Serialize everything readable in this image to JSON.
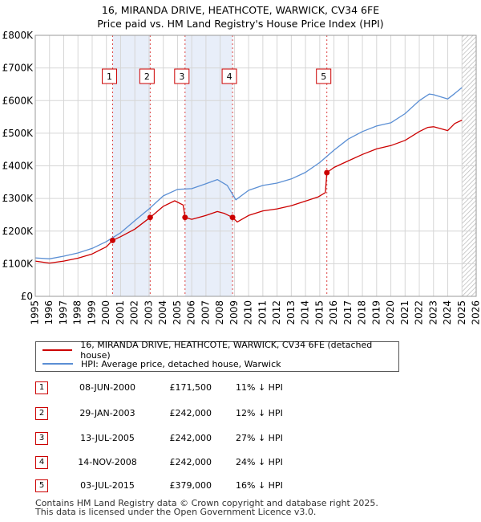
{
  "title_line1": "16, MIRANDA DRIVE, HEATHCOTE, WARWICK, CV34 6FE",
  "title_line2": "Price paid vs. HM Land Registry's House Price Index (HPI)",
  "chart_data": {
    "type": "line",
    "title": "16, MIRANDA DRIVE, HEATHCOTE, WARWICK, CV34 6FE — Price paid vs. HM Land Registry's House Price Index (HPI)",
    "xlim": [
      1995,
      2026
    ],
    "ylim": [
      0,
      800000
    ],
    "x_ticks": [
      "1995",
      "1996",
      "1997",
      "1998",
      "1999",
      "2000",
      "2001",
      "2002",
      "2003",
      "2004",
      "2005",
      "2006",
      "2007",
      "2008",
      "2009",
      "2010",
      "2011",
      "2012",
      "2013",
      "2014",
      "2015",
      "2016",
      "2017",
      "2018",
      "2019",
      "2020",
      "2021",
      "2022",
      "2023",
      "2024",
      "2025",
      "2026"
    ],
    "y_ticks": [
      {
        "value": 0,
        "label": "£0"
      },
      {
        "value": 100000,
        "label": "£100K"
      },
      {
        "value": 200000,
        "label": "£200K"
      },
      {
        "value": 300000,
        "label": "£300K"
      },
      {
        "value": 400000,
        "label": "£400K"
      },
      {
        "value": 500000,
        "label": "£500K"
      },
      {
        "value": 600000,
        "label": "£600K"
      },
      {
        "value": 700000,
        "label": "£700K"
      },
      {
        "value": 800000,
        "label": "£800K"
      }
    ],
    "grid": true,
    "series": [
      {
        "name": "16, MIRANDA DRIVE, HEATHCOTE, WARWICK, CV34 6FE (detached house)",
        "color": "#cc0000",
        "points": [
          [
            1995.0,
            108000
          ],
          [
            1996.0,
            102000
          ],
          [
            1997.0,
            108000
          ],
          [
            1998.0,
            117000
          ],
          [
            1999.0,
            130000
          ],
          [
            2000.0,
            152000
          ],
          [
            2000.44,
            171500
          ],
          [
            2001.0,
            183000
          ],
          [
            2002.0,
            206000
          ],
          [
            2003.08,
            242000
          ],
          [
            2004.0,
            276000
          ],
          [
            2004.8,
            293000
          ],
          [
            2005.4,
            280000
          ],
          [
            2005.53,
            242000
          ],
          [
            2006.0,
            236000
          ],
          [
            2007.0,
            248000
          ],
          [
            2007.8,
            260000
          ],
          [
            2008.3,
            254000
          ],
          [
            2008.87,
            242000
          ],
          [
            2009.2,
            228000
          ],
          [
            2010.0,
            248000
          ],
          [
            2011.0,
            262000
          ],
          [
            2012.0,
            268000
          ],
          [
            2013.0,
            278000
          ],
          [
            2014.0,
            292000
          ],
          [
            2014.9,
            305000
          ],
          [
            2015.4,
            318000
          ],
          [
            2015.5,
            379000
          ],
          [
            2016.0,
            395000
          ],
          [
            2017.0,
            415000
          ],
          [
            2018.0,
            435000
          ],
          [
            2019.0,
            452000
          ],
          [
            2020.0,
            462000
          ],
          [
            2021.0,
            478000
          ],
          [
            2022.0,
            505000
          ],
          [
            2022.6,
            518000
          ],
          [
            2023.0,
            520000
          ],
          [
            2024.0,
            508000
          ],
          [
            2024.5,
            530000
          ],
          [
            2025.0,
            540000
          ]
        ]
      },
      {
        "name": "HPI: Average price, detached house, Warwick",
        "color": "#5b8fd4",
        "points": [
          [
            1995.0,
            118000
          ],
          [
            1996.0,
            115000
          ],
          [
            1997.0,
            123000
          ],
          [
            1998.0,
            133000
          ],
          [
            1999.0,
            147000
          ],
          [
            2000.0,
            168000
          ],
          [
            2001.0,
            195000
          ],
          [
            2002.0,
            232000
          ],
          [
            2003.0,
            268000
          ],
          [
            2004.0,
            308000
          ],
          [
            2005.0,
            328000
          ],
          [
            2006.0,
            330000
          ],
          [
            2007.0,
            345000
          ],
          [
            2007.8,
            358000
          ],
          [
            2008.5,
            340000
          ],
          [
            2009.1,
            296000
          ],
          [
            2010.0,
            325000
          ],
          [
            2011.0,
            340000
          ],
          [
            2012.0,
            347000
          ],
          [
            2013.0,
            360000
          ],
          [
            2014.0,
            380000
          ],
          [
            2015.0,
            410000
          ],
          [
            2016.0,
            448000
          ],
          [
            2017.0,
            482000
          ],
          [
            2018.0,
            505000
          ],
          [
            2019.0,
            522000
          ],
          [
            2020.0,
            532000
          ],
          [
            2021.0,
            560000
          ],
          [
            2022.0,
            600000
          ],
          [
            2022.7,
            620000
          ],
          [
            2023.0,
            618000
          ],
          [
            2024.0,
            605000
          ],
          [
            2024.5,
            622000
          ],
          [
            2025.0,
            640000
          ]
        ]
      }
    ],
    "sales": [
      {
        "id": "1",
        "date": "08-JUN-2000",
        "x": 2000.44,
        "price": 171500,
        "price_label": "£171,500",
        "hpi": "11% ↓ HPI"
      },
      {
        "id": "2",
        "date": "29-JAN-2003",
        "x": 2003.08,
        "price": 242000,
        "price_label": "£242,000",
        "hpi": "12% ↓ HPI"
      },
      {
        "id": "3",
        "date": "13-JUL-2005",
        "x": 2005.53,
        "price": 242000,
        "price_label": "£242,000",
        "hpi": "27% ↓ HPI"
      },
      {
        "id": "4",
        "date": "14-NOV-2008",
        "x": 2008.87,
        "price": 242000,
        "price_label": "£242,000",
        "hpi": "24% ↓ HPI"
      },
      {
        "id": "5",
        "date": "03-JUL-2015",
        "x": 2015.5,
        "price": 379000,
        "price_label": "£379,000",
        "hpi": "16% ↓ HPI"
      }
    ],
    "highlight_spans": [
      [
        2000.44,
        2003.08
      ],
      [
        2005.53,
        2008.87
      ],
      [
        2015.5,
        2015.5
      ]
    ],
    "future_from": 2025.0,
    "colors": {
      "property": "#cc0000",
      "hpi": "#5b8fd4",
      "span_fill": "#e8eef9",
      "grid": "#d6d6d6"
    }
  },
  "legend": {
    "property_label": "16, MIRANDA DRIVE, HEATHCOTE, WARWICK, CV34 6FE (detached house)",
    "hpi_label": "HPI: Average price, detached house, Warwick"
  },
  "footer_line1": "Contains HM Land Registry data © Crown copyright and database right 2025.",
  "footer_line2": "This data is licensed under the Open Government Licence v3.0."
}
